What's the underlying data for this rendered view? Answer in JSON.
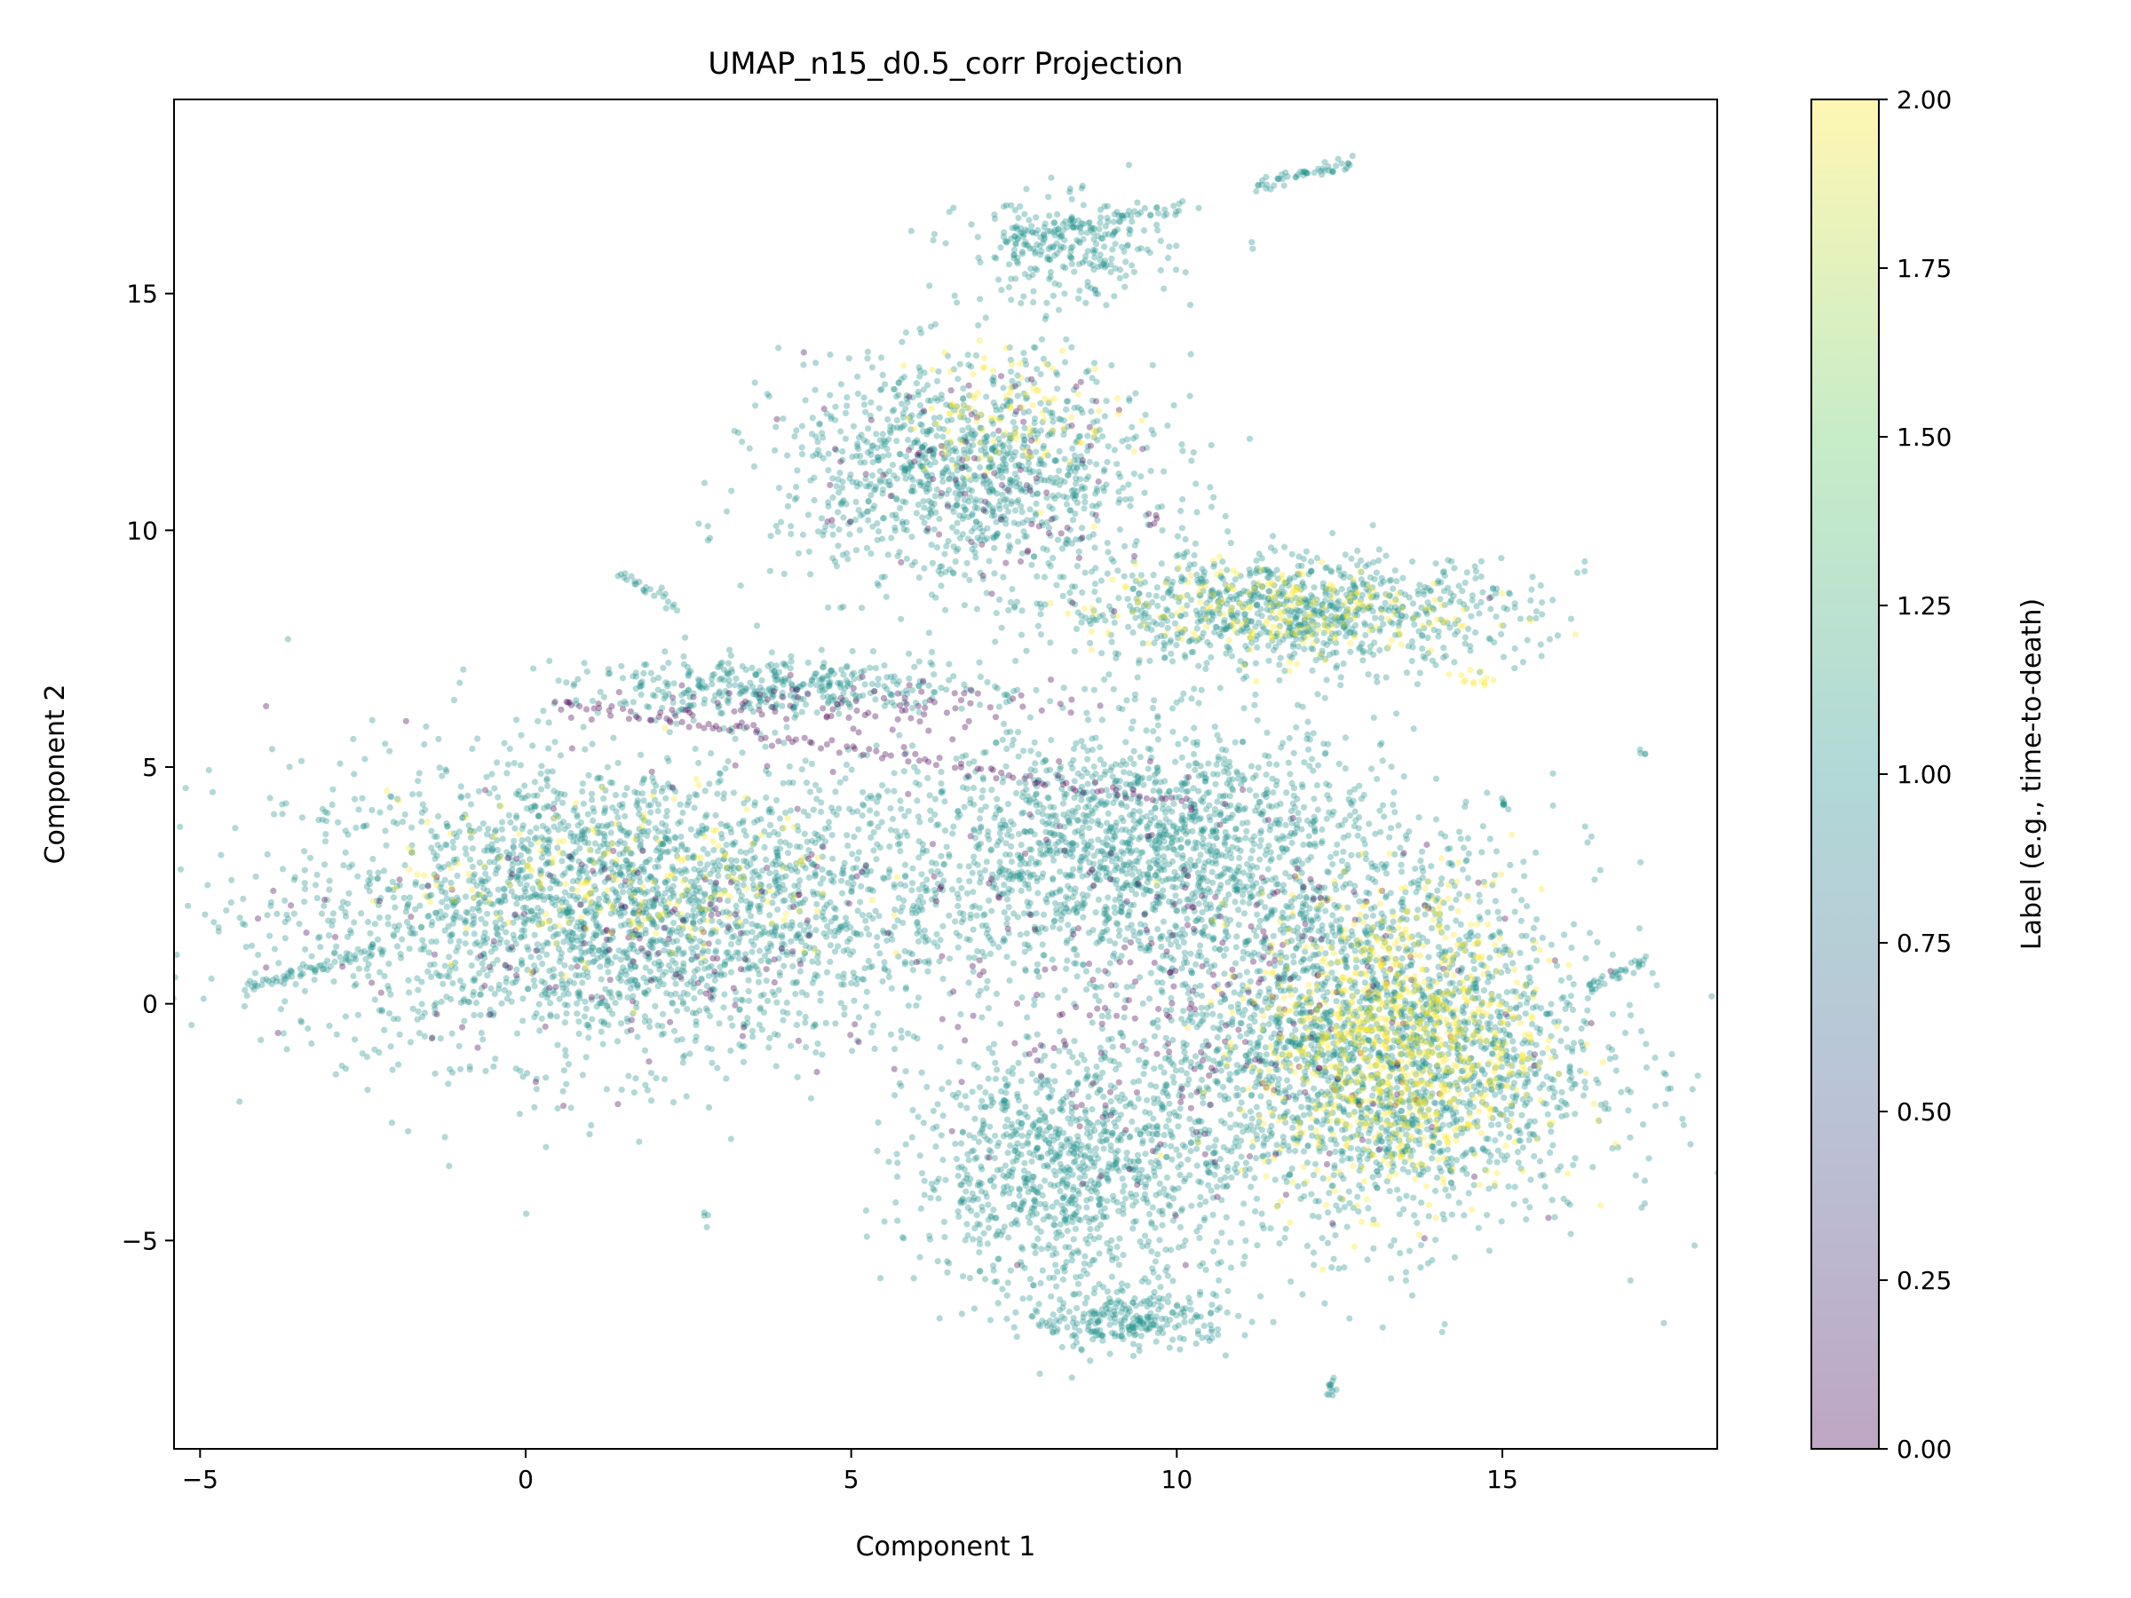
{
  "chart_data": {
    "type": "scatter",
    "title": "UMAP_n15_d0.5_corr Projection",
    "xlabel": "Component 1",
    "ylabel": "Component 2",
    "xlim": [
      -5.4,
      18.3
    ],
    "ylim": [
      -9.4,
      19.1
    ],
    "xticks": [
      -5,
      0,
      5,
      10,
      15
    ],
    "yticks": [
      -5,
      0,
      5,
      10,
      15
    ],
    "xtick_labels": [
      "−5",
      "0",
      "5",
      "10",
      "15"
    ],
    "ytick_labels": [
      "−5",
      "0",
      "5",
      "10",
      "15"
    ],
    "grid": false,
    "colorbar": {
      "label": "Label (e.g., time-to-death)",
      "range": [
        0.0,
        2.0
      ],
      "ticks": [
        0.0,
        0.25,
        0.5,
        0.75,
        1.0,
        1.25,
        1.5,
        1.75,
        2.0
      ],
      "tick_labels": [
        "0.00",
        "0.25",
        "0.50",
        "0.75",
        "1.00",
        "1.25",
        "1.50",
        "1.75",
        "2.00"
      ],
      "colormap": "viridis",
      "colors": [
        "#440154",
        "#3b528b",
        "#21918c",
        "#5ec962",
        "#fde725"
      ],
      "alpha": 0.35
    },
    "marker_alpha": 0.35,
    "point_groups": [
      {
        "label": 1,
        "cx": 1.5,
        "cy": 2.0,
        "rx": 5.2,
        "ry": 3.2,
        "count": 2600
      },
      {
        "label": 1,
        "cx": 6.8,
        "cy": 11.2,
        "rx": 2.9,
        "ry": 2.4,
        "count": 1100
      },
      {
        "label": 1,
        "cx": 11.8,
        "cy": 8.3,
        "rx": 3.6,
        "ry": 1.2,
        "count": 900
      },
      {
        "label": 1,
        "cx": 9.5,
        "cy": 3.3,
        "rx": 3.8,
        "ry": 2.6,
        "count": 1700
      },
      {
        "label": 1,
        "cx": 13.0,
        "cy": -1.0,
        "rx": 3.5,
        "ry": 3.8,
        "count": 2400
      },
      {
        "label": 1,
        "cx": 8.3,
        "cy": -3.5,
        "rx": 2.4,
        "ry": 2.6,
        "count": 1000
      },
      {
        "label": 1,
        "cx": 9.3,
        "cy": -6.7,
        "rx": 1.6,
        "ry": 0.6,
        "count": 250
      },
      {
        "label": 1,
        "cx": 8.3,
        "cy": 15.9,
        "rx": 1.6,
        "ry": 1.1,
        "count": 260
      },
      {
        "label": 1,
        "cx": 3.9,
        "cy": 6.7,
        "rx": 3.2,
        "ry": 0.6,
        "count": 380
      },
      {
        "label": 2,
        "cx": 13.4,
        "cy": -0.8,
        "rx": 2.2,
        "ry": 3.2,
        "count": 900
      },
      {
        "label": 2,
        "cx": 11.5,
        "cy": 8.3,
        "rx": 2.8,
        "ry": 1.0,
        "count": 220
      },
      {
        "label": 2,
        "cx": 1.5,
        "cy": 2.6,
        "rx": 3.5,
        "ry": 1.8,
        "count": 200
      },
      {
        "label": 2,
        "cx": 7.4,
        "cy": 12.5,
        "rx": 1.6,
        "ry": 1.4,
        "count": 100
      },
      {
        "label": 0,
        "cx": 2.5,
        "cy": 1.5,
        "rx": 5.5,
        "ry": 3.0,
        "count": 180
      },
      {
        "label": 0,
        "cx": 10.5,
        "cy": 0.0,
        "rx": 4.5,
        "ry": 4.0,
        "count": 260
      },
      {
        "label": 0,
        "cx": 7.0,
        "cy": 11.0,
        "rx": 2.6,
        "ry": 2.4,
        "count": 90
      },
      {
        "label": 0,
        "cx": 4.5,
        "cy": 6.3,
        "rx": 3.5,
        "ry": 0.5,
        "count": 100
      }
    ],
    "strands": [
      {
        "label": 1,
        "from": [
          7.4,
          16.1
        ],
        "to": [
          10.2,
          16.9
        ],
        "count": 60
      },
      {
        "label": 1,
        "from": [
          11.2,
          17.3
        ],
        "to": [
          12.7,
          17.8
        ],
        "count": 50
      },
      {
        "label": 1,
        "from": [
          1.4,
          9.1
        ],
        "to": [
          2.3,
          8.4
        ],
        "count": 25
      },
      {
        "label": 1,
        "from": [
          -4.3,
          0.3
        ],
        "to": [
          -2.2,
          1.2
        ],
        "count": 70
      },
      {
        "label": 1,
        "from": [
          16.3,
          0.3
        ],
        "to": [
          17.2,
          0.9
        ],
        "count": 30
      },
      {
        "label": 1,
        "from": [
          12.35,
          -7.9
        ],
        "to": [
          12.4,
          -8.3
        ],
        "count": 12
      },
      {
        "label": 1,
        "from": [
          2.8,
          -4.5
        ],
        "to": [
          2.8,
          -4.5
        ],
        "count": 4
      },
      {
        "label": 1,
        "from": [
          17.2,
          5.3
        ],
        "to": [
          17.2,
          5.3
        ],
        "count": 4
      },
      {
        "label": 1,
        "from": [
          15.0,
          4.3
        ],
        "to": [
          15.1,
          4.1
        ],
        "count": 8
      },
      {
        "label": 0,
        "from": [
          0.5,
          6.4
        ],
        "to": [
          10.3,
          4.2
        ],
        "count": 110
      },
      {
        "label": 0,
        "from": [
          9.6,
          10.4
        ],
        "to": [
          9.7,
          10.1
        ],
        "count": 4
      },
      {
        "label": 2,
        "from": [
          14.3,
          6.9
        ],
        "to": [
          14.8,
          6.8
        ],
        "count": 12
      }
    ]
  }
}
